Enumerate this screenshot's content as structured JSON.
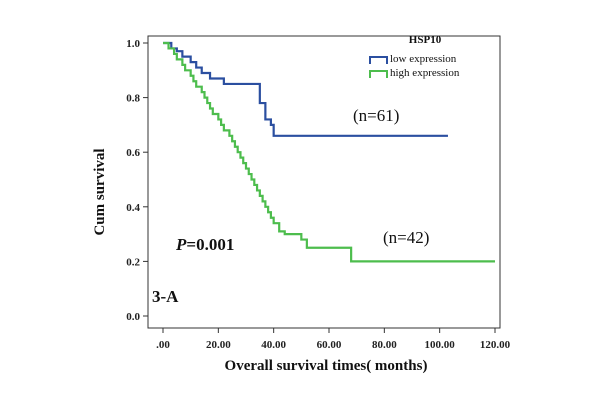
{
  "chart_data": {
    "type": "line",
    "subtype": "kaplan-meier-step",
    "xlabel": "Overall  survival times( months)",
    "ylabel": "Cum survival",
    "xlim": [
      0,
      120
    ],
    "ylim": [
      0,
      1.0
    ],
    "x_ticks": [
      ".00",
      "20.00",
      "40.00",
      "60.00",
      "80.00",
      "100.00",
      "120.00"
    ],
    "x_tick_values": [
      0,
      20,
      40,
      60,
      80,
      100,
      120
    ],
    "y_ticks": [
      "0.0",
      "0.2",
      "0.4",
      "0.6",
      "0.8",
      "1.0"
    ],
    "y_tick_values": [
      0,
      0.2,
      0.4,
      0.6,
      0.8,
      1.0
    ],
    "legend": {
      "title": "HSP10",
      "placement": "top-right"
    },
    "series": [
      {
        "name": "low expression",
        "color": "#2b4fa0",
        "n_label": "(n=61)",
        "x": [
          0,
          3,
          5,
          7,
          10,
          12,
          14,
          17,
          20,
          22,
          25,
          35,
          37,
          39,
          40,
          103
        ],
        "y": [
          1.0,
          0.98,
          0.97,
          0.95,
          0.93,
          0.91,
          0.89,
          0.87,
          0.87,
          0.85,
          0.85,
          0.78,
          0.72,
          0.7,
          0.66,
          0.66
        ]
      },
      {
        "name": "high expression",
        "color": "#4dbd4d",
        "n_label": "(n=42)",
        "x": [
          0,
          2,
          4,
          5,
          7,
          8,
          10,
          11,
          12,
          14,
          15,
          16,
          17,
          18,
          20,
          21,
          22,
          24,
          25,
          26,
          27,
          28,
          29,
          30,
          31,
          32,
          33,
          34,
          35,
          36,
          37,
          38,
          39,
          40,
          42,
          44,
          46,
          50,
          52,
          60,
          68,
          120
        ],
        "y": [
          1.0,
          0.98,
          0.96,
          0.94,
          0.92,
          0.9,
          0.88,
          0.86,
          0.84,
          0.82,
          0.8,
          0.78,
          0.76,
          0.74,
          0.72,
          0.7,
          0.68,
          0.66,
          0.64,
          0.62,
          0.6,
          0.58,
          0.56,
          0.54,
          0.52,
          0.5,
          0.48,
          0.46,
          0.44,
          0.42,
          0.4,
          0.38,
          0.36,
          0.34,
          0.31,
          0.3,
          0.3,
          0.28,
          0.25,
          0.25,
          0.2,
          0.2
        ]
      }
    ],
    "annotations": {
      "p_label": "P",
      "p_value": "=0.001",
      "panel_label": "3-A"
    }
  }
}
